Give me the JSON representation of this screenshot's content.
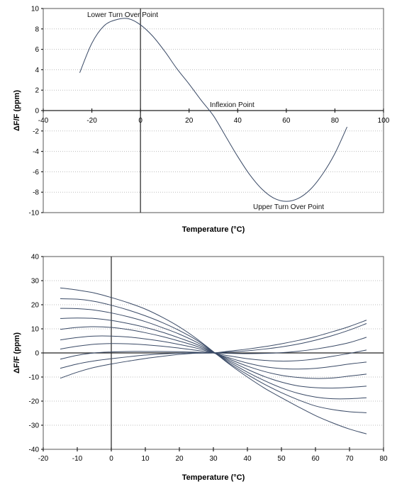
{
  "chart_data": [
    {
      "type": "line",
      "xlabel": "Temperature (°C)",
      "ylabel": "ΔF/F (ppm)",
      "xlim": [
        -40,
        100
      ],
      "ylim": [
        -10,
        10
      ],
      "xticks": [
        -40,
        -20,
        0,
        20,
        40,
        60,
        80,
        100
      ],
      "yticks": [
        -10,
        -8,
        -6,
        -4,
        -2,
        0,
        2,
        4,
        6,
        8,
        10
      ],
      "grid": "horizontal dotted",
      "curve_color": "#3a4a66",
      "annotations": [
        {
          "text": "Lower Turn Over Point",
          "x": -5,
          "y": 9
        },
        {
          "text": "Inflexion Point",
          "x": 30,
          "y": 0
        },
        {
          "text": "Upper Turn Over Point",
          "x": 62,
          "y": -9
        }
      ],
      "series": [
        {
          "x": [
            -25,
            -20,
            -15,
            -10,
            -5,
            0,
            5,
            10,
            15,
            20,
            25,
            30,
            35,
            40,
            45,
            50,
            55,
            60,
            65,
            70,
            75,
            80,
            85
          ],
          "y": [
            3.7,
            6.6,
            8.3,
            8.9,
            9.0,
            8.4,
            7.3,
            5.8,
            4.1,
            2.6,
            1.0,
            -0.5,
            -2.5,
            -4.5,
            -6.3,
            -7.7,
            -8.6,
            -8.9,
            -8.6,
            -7.7,
            -6.2,
            -4.2,
            -1.6
          ]
        }
      ]
    },
    {
      "type": "line",
      "xlabel": "Temperature (°C)",
      "ylabel": "ΔF/F (ppm)",
      "xlim": [
        -20,
        80
      ],
      "ylim": [
        -40,
        40
      ],
      "xticks": [
        -20,
        -10,
        0,
        10,
        20,
        30,
        40,
        50,
        60,
        70,
        80
      ],
      "yticks": [
        -40,
        -30,
        -20,
        -10,
        0,
        10,
        20,
        30,
        40
      ],
      "grid": "horizontal dotted",
      "curve_color": "#3a4a66",
      "series": [
        {
          "x": [
            -15,
            -10,
            -5,
            0,
            5,
            10,
            15,
            20,
            25,
            30,
            35,
            40,
            45,
            50,
            55,
            60,
            65,
            70,
            75
          ],
          "y": [
            27.0,
            26.1,
            24.9,
            23.0,
            20.8,
            18.2,
            14.8,
            10.8,
            6.0,
            0.5,
            -5.0,
            -10.0,
            -14.6,
            -18.6,
            -22.4,
            -26.0,
            -29.0,
            -31.6,
            -33.6
          ]
        },
        {
          "x": [
            -15,
            -10,
            -5,
            0,
            5,
            10,
            15,
            20,
            25,
            30,
            35,
            40,
            45,
            50,
            55,
            60,
            65,
            70,
            75
          ],
          "y": [
            22.5,
            22.3,
            21.4,
            19.8,
            17.8,
            15.4,
            12.6,
            9.3,
            5.4,
            0.4,
            -4.6,
            -9.0,
            -13.0,
            -16.5,
            -19.5,
            -22.0,
            -23.5,
            -24.4,
            -24.8
          ]
        },
        {
          "x": [
            -15,
            -10,
            -5,
            0,
            5,
            10,
            15,
            20,
            25,
            30,
            35,
            40,
            45,
            50,
            55,
            60,
            65,
            70,
            75
          ],
          "y": [
            18.5,
            18.4,
            17.8,
            16.6,
            15.0,
            13.0,
            10.5,
            7.8,
            4.5,
            0.3,
            -4.0,
            -8.0,
            -11.5,
            -14.5,
            -16.8,
            -18.3,
            -19.0,
            -19.0,
            -18.6
          ]
        },
        {
          "x": [
            -15,
            -10,
            -5,
            0,
            5,
            10,
            15,
            20,
            25,
            30,
            35,
            40,
            45,
            50,
            55,
            60,
            65,
            70,
            75
          ],
          "y": [
            14.3,
            14.5,
            14.3,
            13.5,
            12.2,
            10.6,
            8.6,
            6.2,
            3.6,
            0.2,
            -3.4,
            -6.8,
            -9.8,
            -12.1,
            -13.7,
            -14.4,
            -14.6,
            -14.3,
            -13.8
          ]
        },
        {
          "x": [
            -15,
            -10,
            -5,
            0,
            5,
            10,
            15,
            20,
            25,
            30,
            35,
            40,
            45,
            50,
            55,
            60,
            65,
            70,
            75
          ],
          "y": [
            9.8,
            10.6,
            10.9,
            10.6,
            9.7,
            8.4,
            6.8,
            4.9,
            2.8,
            0.1,
            -2.8,
            -5.5,
            -7.7,
            -9.3,
            -10.2,
            -10.6,
            -10.4,
            -9.6,
            -8.8
          ]
        },
        {
          "x": [
            -15,
            -10,
            -5,
            0,
            5,
            10,
            15,
            20,
            25,
            30,
            35,
            40,
            45,
            50,
            55,
            60,
            65,
            70,
            75
          ],
          "y": [
            5.4,
            6.4,
            7.0,
            7.0,
            6.6,
            5.8,
            4.8,
            3.5,
            2.0,
            0.0,
            -2.2,
            -4.2,
            -5.7,
            -6.5,
            -6.7,
            -6.4,
            -5.6,
            -4.6,
            -3.8
          ]
        },
        {
          "x": [
            -15,
            -10,
            -5,
            0,
            5,
            10,
            15,
            20,
            25,
            30,
            35,
            40,
            45,
            50,
            55,
            60,
            65,
            70,
            75
          ],
          "y": [
            1.6,
            2.8,
            3.6,
            3.9,
            3.8,
            3.4,
            2.8,
            2.0,
            1.1,
            0.0,
            -1.3,
            -2.4,
            -3.1,
            -3.4,
            -3.2,
            -2.5,
            -1.4,
            -0.2,
            1.2
          ]
        },
        {
          "x": [
            -15,
            -10,
            -5,
            0,
            5,
            10,
            15,
            20,
            25,
            30,
            35,
            40,
            45,
            50,
            55,
            60,
            65,
            70,
            75
          ],
          "y": [
            -2.6,
            -1.0,
            0.0,
            0.4,
            0.6,
            0.6,
            0.6,
            0.5,
            0.3,
            0.0,
            -0.2,
            -0.3,
            -0.2,
            0.1,
            0.7,
            1.6,
            2.8,
            4.3,
            6.5
          ]
        },
        {
          "x": [
            -15,
            -10,
            -5,
            0,
            5,
            10,
            15,
            20,
            25,
            30,
            35,
            40,
            45,
            50,
            55,
            60,
            65,
            70,
            75
          ],
          "y": [
            -6.4,
            -4.6,
            -3.3,
            -2.4,
            -1.6,
            -0.9,
            -0.4,
            -0.1,
            0.1,
            0.0,
            0.4,
            0.9,
            1.6,
            2.5,
            3.7,
            5.3,
            7.2,
            9.5,
            12.2
          ]
        },
        {
          "x": [
            -15,
            -10,
            -5,
            0,
            5,
            10,
            15,
            20,
            25,
            30,
            35,
            40,
            45,
            50,
            55,
            60,
            65,
            70,
            75
          ],
          "y": [
            -10.5,
            -8.0,
            -6.0,
            -4.6,
            -3.4,
            -2.3,
            -1.4,
            -0.6,
            -0.1,
            0.0,
            0.8,
            1.6,
            2.6,
            3.8,
            5.2,
            6.8,
            8.8,
            11.0,
            13.6
          ]
        }
      ]
    }
  ]
}
